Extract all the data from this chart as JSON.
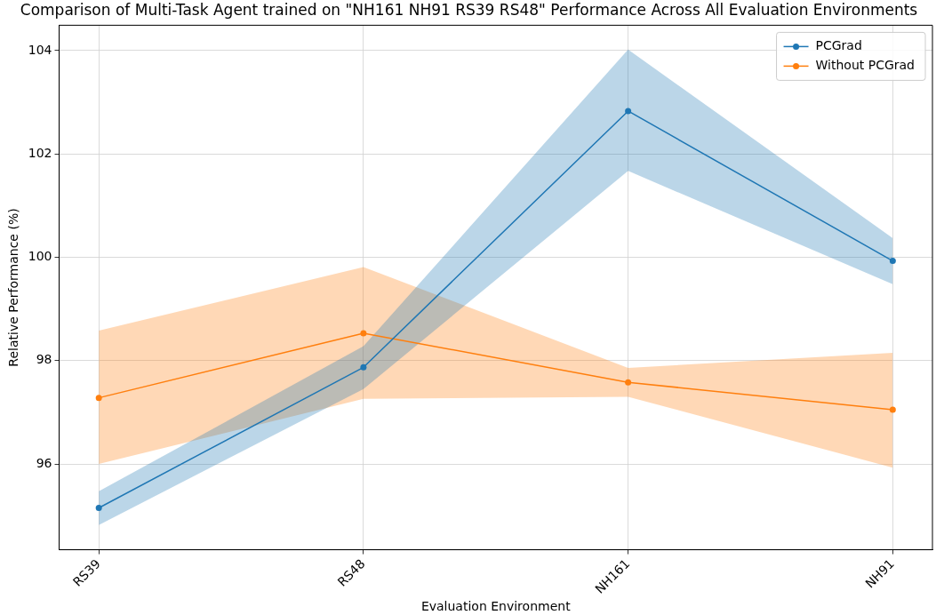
{
  "chart_data": {
    "type": "line",
    "title": "Comparison of Multi-Task Agent trained on \"NH161 NH91 RS39 RS48\" Performance Across All Evaluation Environments",
    "xlabel": "Evaluation Environment",
    "ylabel": "Relative Performance (%)",
    "categories": [
      "RS39",
      "RS48",
      "NH161",
      "NH91"
    ],
    "series": [
      {
        "name": "PCGrad",
        "color": "#1f77b4",
        "values": [
          95.15,
          97.87,
          102.83,
          99.93
        ],
        "lower": [
          94.82,
          97.45,
          101.67,
          99.48
        ],
        "upper": [
          95.47,
          98.28,
          104.02,
          100.37
        ]
      },
      {
        "name": "Without PCGrad",
        "color": "#ff7f0e",
        "values": [
          97.28,
          98.53,
          97.58,
          97.05
        ],
        "lower": [
          96.0,
          97.26,
          97.3,
          95.93
        ],
        "upper": [
          98.58,
          99.81,
          97.86,
          98.15
        ]
      }
    ],
    "ylim": [
      94.34,
      104.49
    ],
    "yticks": [
      96,
      98,
      100,
      102,
      104
    ],
    "grid": true,
    "legend": "top right",
    "marker": "circle",
    "line_style": "solid"
  }
}
